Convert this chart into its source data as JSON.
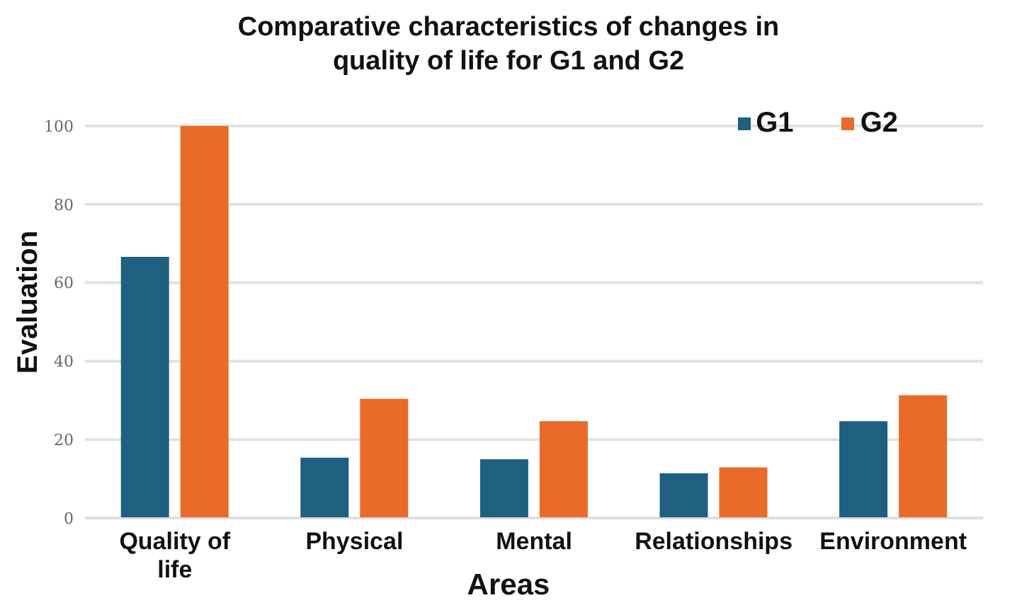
{
  "chart_data": {
    "type": "bar",
    "title": "Comparative characteristics of changes in quality of life for G1 and G2",
    "xlabel": "Areas",
    "ylabel": "Evaluation",
    "categories": [
      "Quality of life",
      "Physical",
      "Mental",
      "Relationships",
      "Environment"
    ],
    "series": [
      {
        "name": "G1",
        "color": "#1f5f80",
        "values": [
          66.6,
          15.4,
          15,
          11.4,
          24.7
        ]
      },
      {
        "name": "G2",
        "color": "#ea6a2a",
        "values": [
          100,
          30.4,
          24.7,
          12.9,
          31.3
        ]
      }
    ],
    "ylim": [
      0,
      100
    ],
    "yticks": [
      0,
      20,
      40,
      60,
      80,
      100
    ],
    "grid": "y",
    "legend": "top right"
  }
}
